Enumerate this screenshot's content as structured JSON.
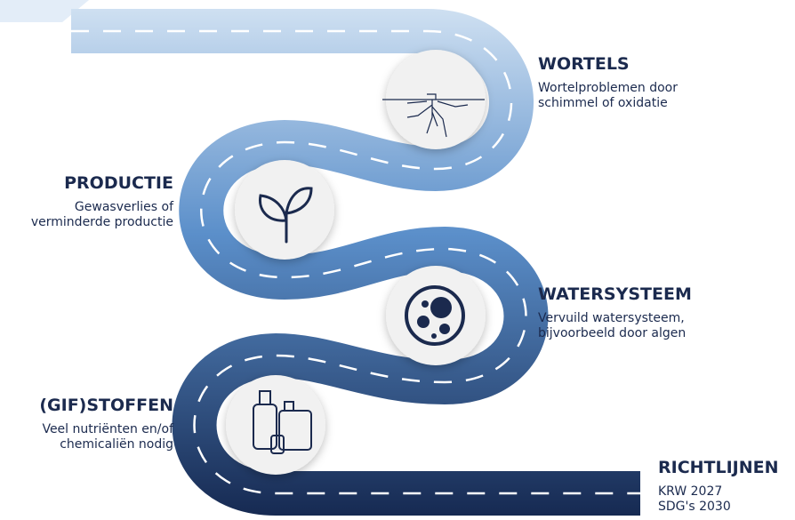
{
  "steps": [
    {
      "title": "WORTELS",
      "description": [
        "Wortelproblemen door",
        "schimmel of oxidatie"
      ]
    },
    {
      "title": "PRODUCTIE",
      "description": [
        "Gewasverlies of",
        "verminderde productie"
      ]
    },
    {
      "title": "WATERSYSTEEM",
      "description": [
        "Vervuild watersysteem,",
        "bijvoorbeeld door algen"
      ]
    },
    {
      "title": "(GIF)STOFFEN",
      "description": [
        "Veel nutriënten en/of",
        "chemicaliën nodig"
      ]
    },
    {
      "title": "RICHTLIJNEN",
      "description": [
        "KRW 2027",
        "SDG's 2030"
      ]
    }
  ]
}
